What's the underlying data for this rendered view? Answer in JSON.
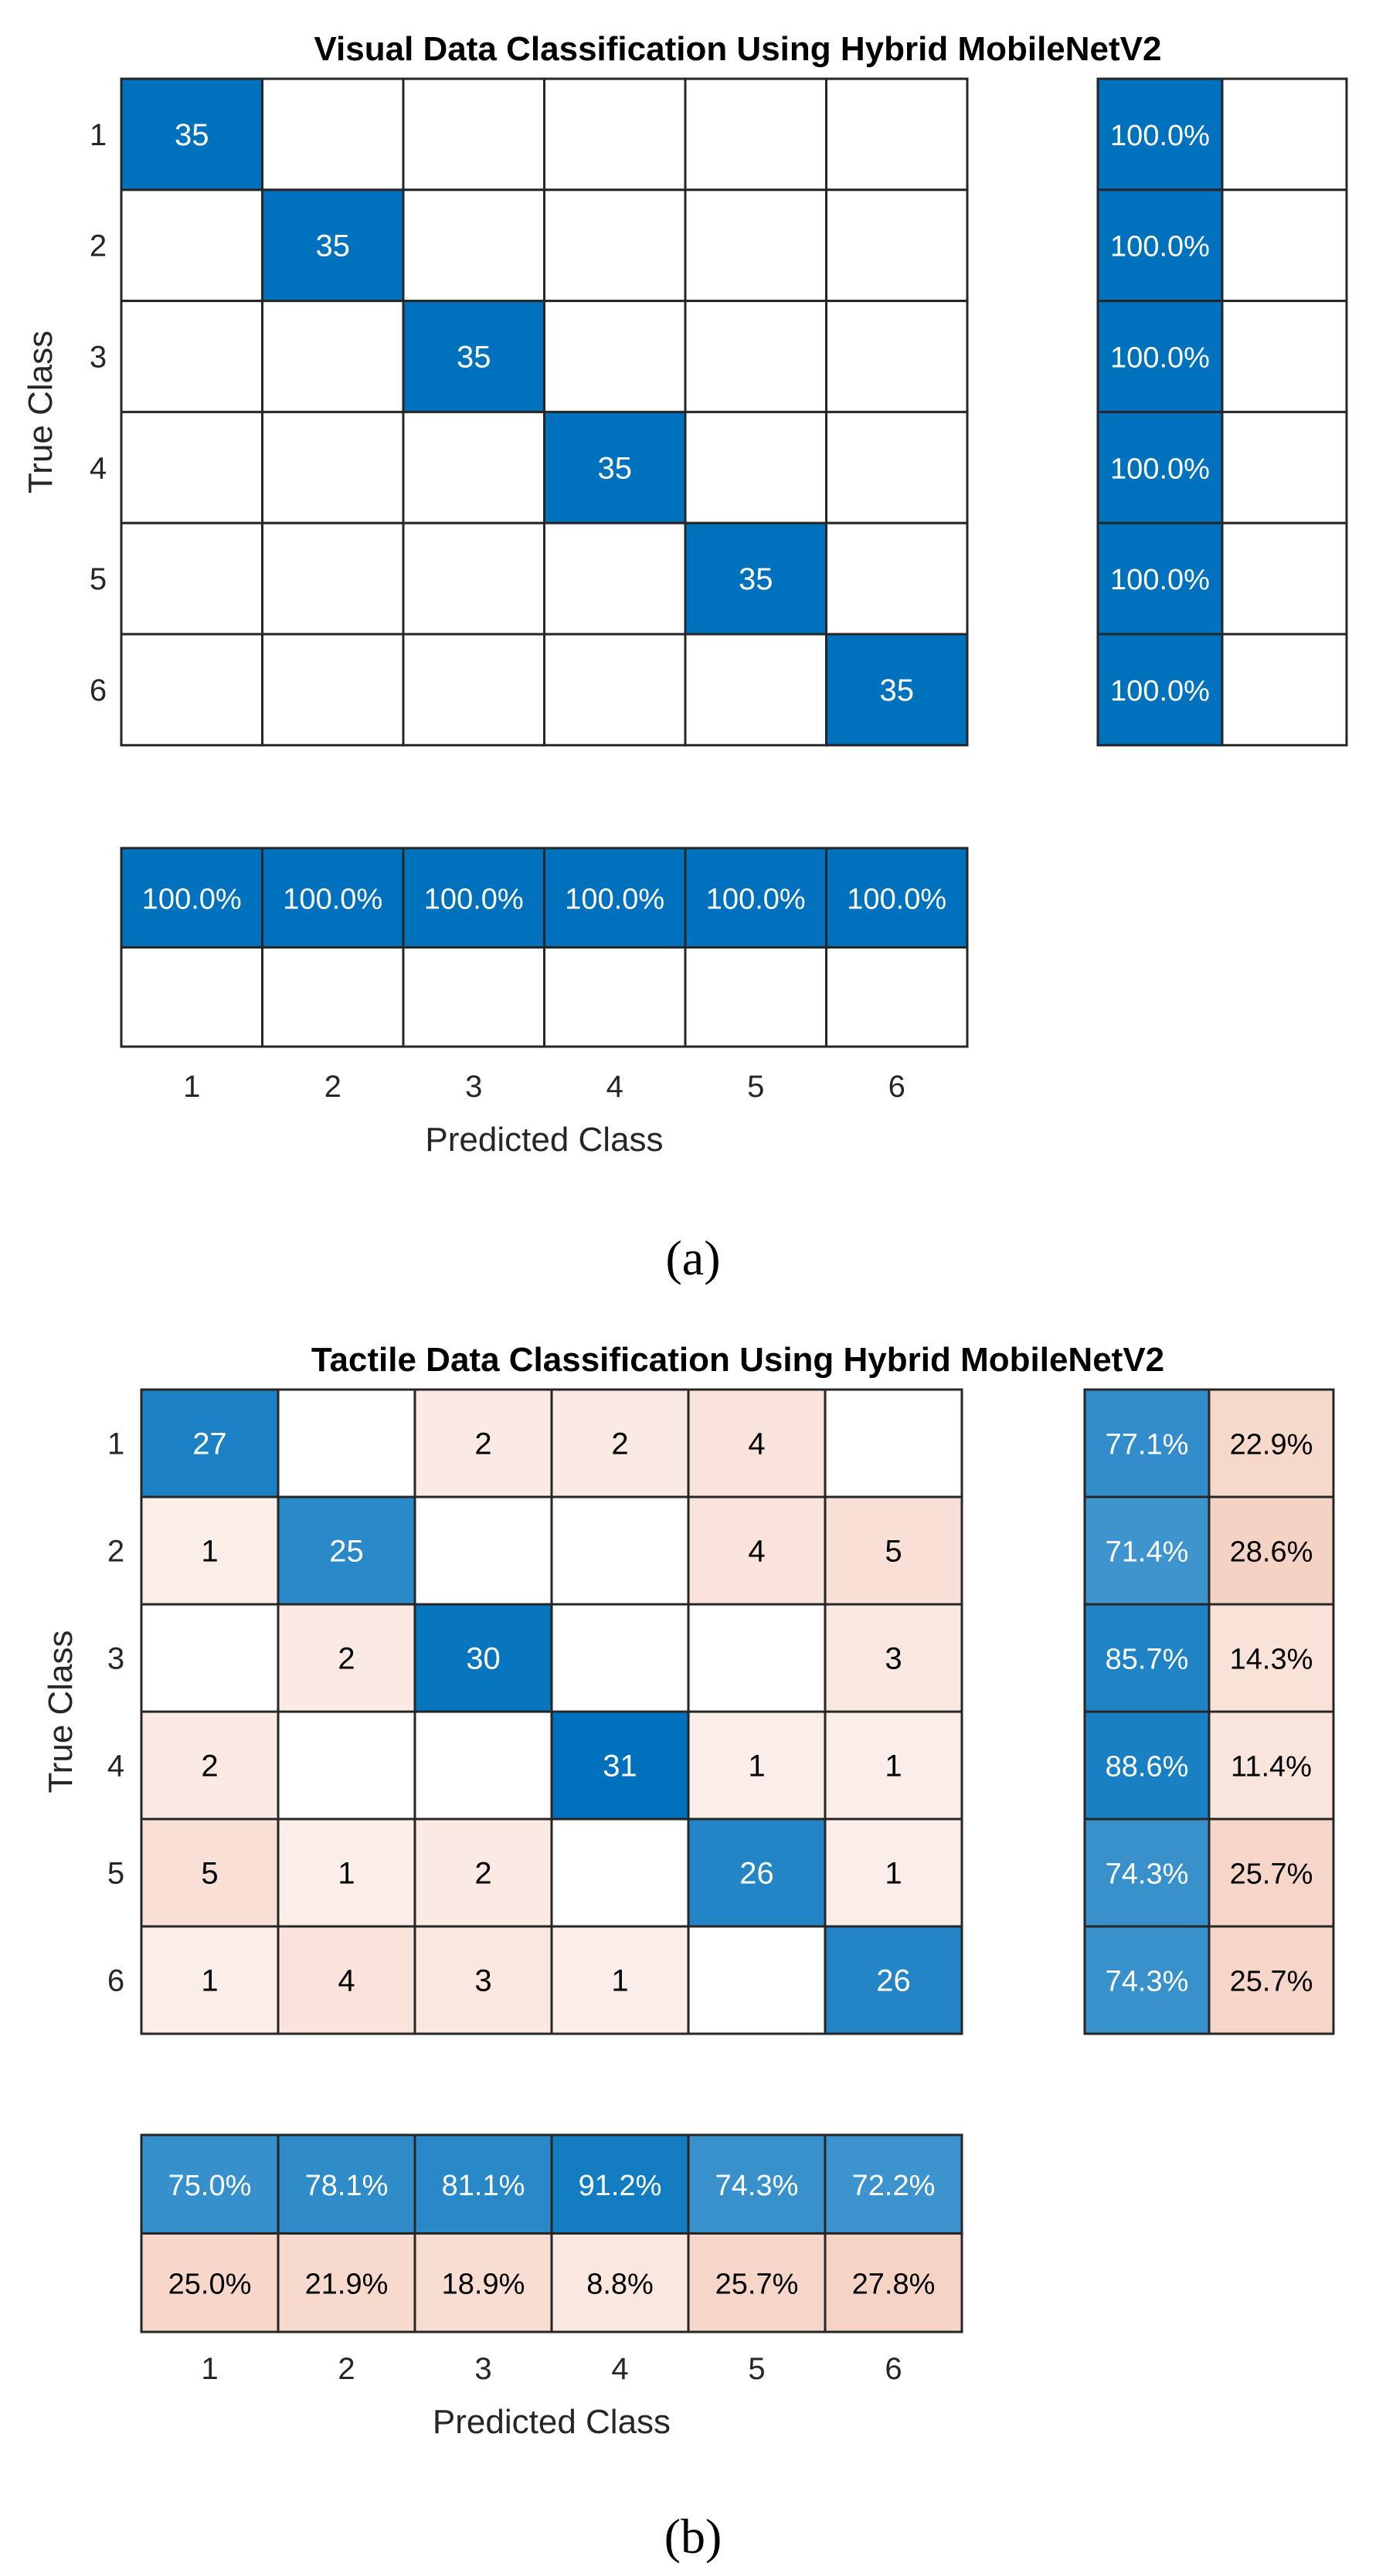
{
  "colors": {
    "correct": "#0072BD",
    "incorrect": "#D95319",
    "grid": "#262626",
    "text_light": "#ffffff",
    "text_dark": "#000000"
  },
  "chart_data": [
    {
      "panel": "(a)",
      "type": "heatmap",
      "title": "Visual Data Classification Using Hybrid MobileNetV2",
      "xlabel": "Predicted Class",
      "ylabel": "True Class",
      "classes": [
        "1",
        "2",
        "3",
        "4",
        "5",
        "6"
      ],
      "matrix": [
        [
          35,
          0,
          0,
          0,
          0,
          0
        ],
        [
          0,
          35,
          0,
          0,
          0,
          0
        ],
        [
          0,
          0,
          35,
          0,
          0,
          0
        ],
        [
          0,
          0,
          0,
          35,
          0,
          0
        ],
        [
          0,
          0,
          0,
          0,
          35,
          0
        ],
        [
          0,
          0,
          0,
          0,
          0,
          35
        ]
      ],
      "row_summary": [
        [
          "100.0%",
          ""
        ],
        [
          "100.0%",
          ""
        ],
        [
          "100.0%",
          ""
        ],
        [
          "100.0%",
          ""
        ],
        [
          "100.0%",
          ""
        ],
        [
          "100.0%",
          ""
        ]
      ],
      "row_summary_values": [
        [
          100.0,
          0
        ],
        [
          100.0,
          0
        ],
        [
          100.0,
          0
        ],
        [
          100.0,
          0
        ],
        [
          100.0,
          0
        ],
        [
          100.0,
          0
        ]
      ],
      "col_summary": [
        [
          "100.0%",
          "100.0%",
          "100.0%",
          "100.0%",
          "100.0%",
          "100.0%"
        ],
        [
          "",
          "",
          "",
          "",
          "",
          ""
        ]
      ],
      "col_summary_values": [
        [
          100.0,
          100.0,
          100.0,
          100.0,
          100.0,
          100.0
        ],
        [
          0,
          0,
          0,
          0,
          0,
          0
        ]
      ]
    },
    {
      "panel": "(b)",
      "type": "heatmap",
      "title": "Tactile Data Classification Using Hybrid MobileNetV2",
      "xlabel": "Predicted Class",
      "ylabel": "True Class",
      "classes": [
        "1",
        "2",
        "3",
        "4",
        "5",
        "6"
      ],
      "matrix": [
        [
          27,
          0,
          2,
          2,
          4,
          0
        ],
        [
          1,
          25,
          0,
          0,
          4,
          5
        ],
        [
          0,
          2,
          30,
          0,
          0,
          3
        ],
        [
          2,
          0,
          0,
          31,
          1,
          1
        ],
        [
          5,
          1,
          2,
          0,
          26,
          1
        ],
        [
          1,
          4,
          3,
          1,
          0,
          26
        ]
      ],
      "row_summary": [
        [
          "77.1%",
          "22.9%"
        ],
        [
          "71.4%",
          "28.6%"
        ],
        [
          "85.7%",
          "14.3%"
        ],
        [
          "88.6%",
          "11.4%"
        ],
        [
          "74.3%",
          "25.7%"
        ],
        [
          "74.3%",
          "25.7%"
        ]
      ],
      "row_summary_values": [
        [
          77.1,
          22.9
        ],
        [
          71.4,
          28.6
        ],
        [
          85.7,
          14.3
        ],
        [
          88.6,
          11.4
        ],
        [
          74.3,
          25.7
        ],
        [
          74.3,
          25.7
        ]
      ],
      "col_summary": [
        [
          "75.0%",
          "78.1%",
          "81.1%",
          "91.2%",
          "74.3%",
          "72.2%"
        ],
        [
          "25.0%",
          "21.9%",
          "18.9%",
          "8.8%",
          "25.7%",
          "27.8%"
        ]
      ],
      "col_summary_values": [
        [
          75.0,
          78.1,
          81.1,
          91.2,
          74.3,
          72.2
        ],
        [
          25.0,
          21.9,
          18.9,
          8.8,
          25.7,
          27.8
        ]
      ]
    }
  ]
}
